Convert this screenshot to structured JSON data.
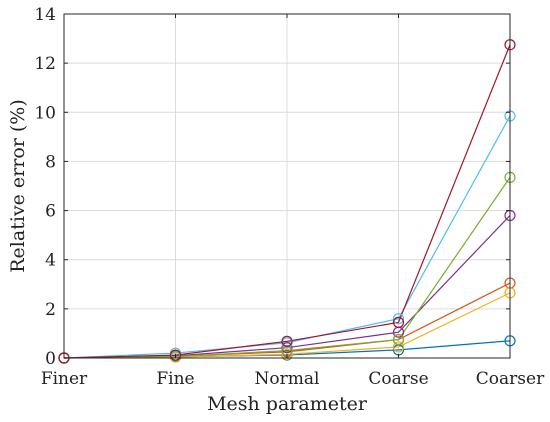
{
  "chart_data": {
    "type": "line",
    "title": "",
    "xlabel": "Mesh parameter",
    "ylabel": "Relative error (%)",
    "categories": [
      "Finer",
      "Fine",
      "Normal",
      "Coarse",
      "Coarser"
    ],
    "ylim": [
      0,
      14
    ],
    "yticks": [
      0,
      2,
      4,
      6,
      8,
      10,
      12,
      14
    ],
    "grid": true,
    "marker": "circle",
    "series": [
      {
        "color": "#0072BD",
        "values": [
          0,
          0.05,
          0.12,
          0.33,
          0.7
        ]
      },
      {
        "color": "#D95319",
        "values": [
          0,
          0.07,
          0.25,
          0.75,
          3.05
        ]
      },
      {
        "color": "#EDB120",
        "values": [
          0,
          0.04,
          0.15,
          0.45,
          2.65
        ]
      },
      {
        "color": "#7E2F8E",
        "values": [
          0,
          0.09,
          0.42,
          1.05,
          5.8
        ]
      },
      {
        "color": "#77AC30",
        "values": [
          0,
          0.06,
          0.3,
          0.75,
          7.35
        ]
      },
      {
        "color": "#4DBEEE",
        "values": [
          0,
          0.2,
          0.62,
          1.6,
          9.85
        ]
      },
      {
        "color": "#A2142F",
        "values": [
          0,
          0.12,
          0.68,
          1.45,
          12.75
        ]
      }
    ]
  }
}
